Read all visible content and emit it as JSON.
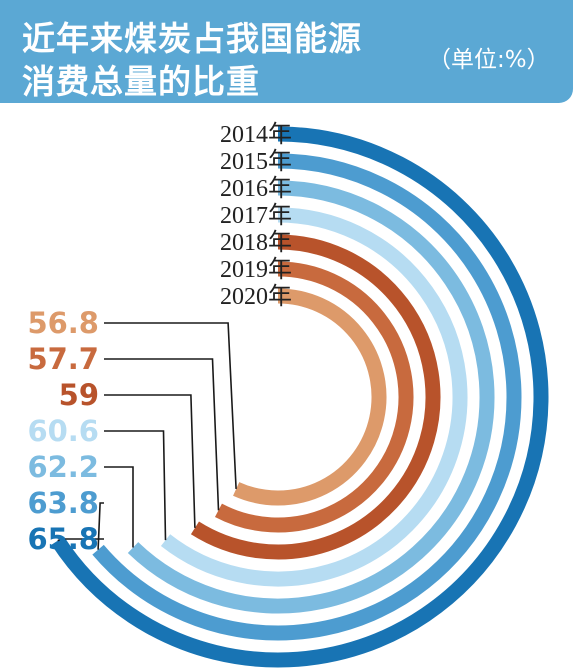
{
  "header": {
    "title_line1": "近年来煤炭占我国能源",
    "title_line2": "消费总量的比重",
    "unit": "（单位:%）"
  },
  "chart_data": {
    "type": "radial-bar",
    "title": "近年来煤炭占我国能源消费总量的比重",
    "unit": "单位:%",
    "categories": [
      "2014年",
      "2015年",
      "2016年",
      "2017年",
      "2018年",
      "2019年",
      "2020年"
    ],
    "values": [
      65.8,
      63.8,
      62.2,
      60.6,
      59,
      57.7,
      56.8
    ],
    "value_labels": [
      "65.8",
      "63.8",
      "62.2",
      "60.6",
      "59",
      "57.7",
      "56.8"
    ],
    "colors": [
      "#1874b4",
      "#4d9cd0",
      "#7cbbe0",
      "#b6dcf2",
      "#b8532b",
      "#c86a3e",
      "#dd9a6a"
    ],
    "label_colors": [
      "#1874b4",
      "#4d9cd0",
      "#7cbbe0",
      "#b6dcf2",
      "#b8532b",
      "#c86a3e",
      "#dd9a6a"
    ]
  }
}
